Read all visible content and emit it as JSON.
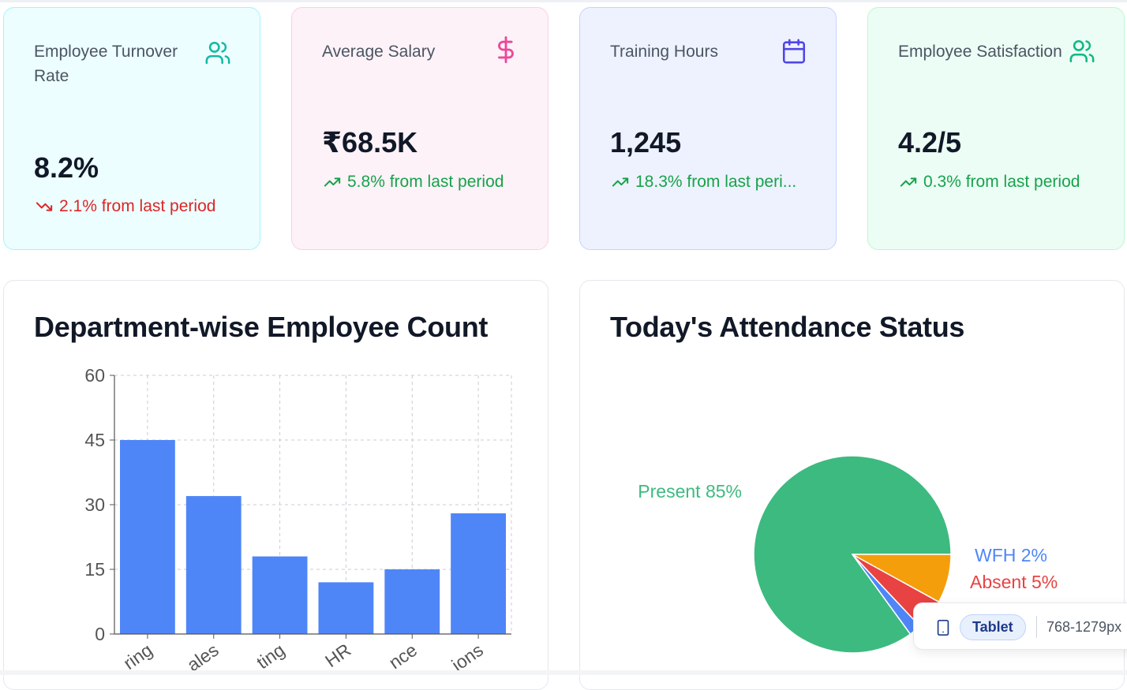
{
  "kpis": [
    {
      "title": "Employee Turnover Rate",
      "icon": "users-icon",
      "value": "8.2%",
      "trend_text": "2.1% from last period",
      "trend_dir": "down",
      "trend_color": "#dc2626",
      "bg": "#ecfeff",
      "border": "#a5f3fc",
      "icon_color": "#14b8a6"
    },
    {
      "title": "Average Salary",
      "icon": "dollar-icon",
      "value": "₹68.5K",
      "trend_text": "5.8% from last period",
      "trend_dir": "up",
      "trend_color": "#16a34a",
      "bg": "#fdf2f8",
      "border": "#fbcfe8",
      "icon_color": "#ec4899"
    },
    {
      "title": "Training Hours",
      "icon": "calendar-icon",
      "value": "1,245",
      "trend_text": "18.3% from last peri...",
      "trend_dir": "up",
      "trend_color": "#16a34a",
      "bg": "#eef2ff",
      "border": "#c7d2fe",
      "icon_color": "#4f46e5"
    },
    {
      "title": "Employee Satisfaction",
      "icon": "users-icon",
      "value": "4.2/5",
      "trend_text": "0.3% from last period",
      "trend_dir": "up",
      "trend_color": "#16a34a",
      "bg": "#ecfdf5",
      "border": "#bbf7d0",
      "icon_color": "#10b981"
    }
  ],
  "bar_panel": {
    "title": "Department-wise Employee Count"
  },
  "pie_panel": {
    "title": "Today's Attendance Status"
  },
  "chart_data": [
    {
      "type": "bar",
      "title": "Department-wise Employee Count",
      "categories": [
        "Engineering",
        "Sales",
        "Marketing",
        "HR",
        "Finance",
        "Operations"
      ],
      "visible_tick_labels": [
        "ring",
        "ales",
        "ting",
        "HR",
        "nce",
        "ions"
      ],
      "values": [
        45,
        32,
        18,
        12,
        15,
        28
      ],
      "ylim": [
        0,
        60
      ],
      "yticks": [
        0,
        15,
        30,
        45,
        60
      ],
      "grid": true,
      "color": "#4f86f7"
    },
    {
      "type": "pie",
      "title": "Today's Attendance Status",
      "slices": [
        {
          "label": "Present 85%",
          "value": 85,
          "color": "#3dba7f"
        },
        {
          "label": "WFH 2%",
          "value": 2,
          "color": "#4f86f7"
        },
        {
          "label": "Absent 5%",
          "value": 5,
          "color": "#e94242"
        },
        {
          "label": "",
          "value": 8,
          "color": "#f59e0b"
        }
      ]
    }
  ],
  "tooltip": {
    "icon": "tablet-icon",
    "badge": "Tablet",
    "range": "768-1279px"
  }
}
